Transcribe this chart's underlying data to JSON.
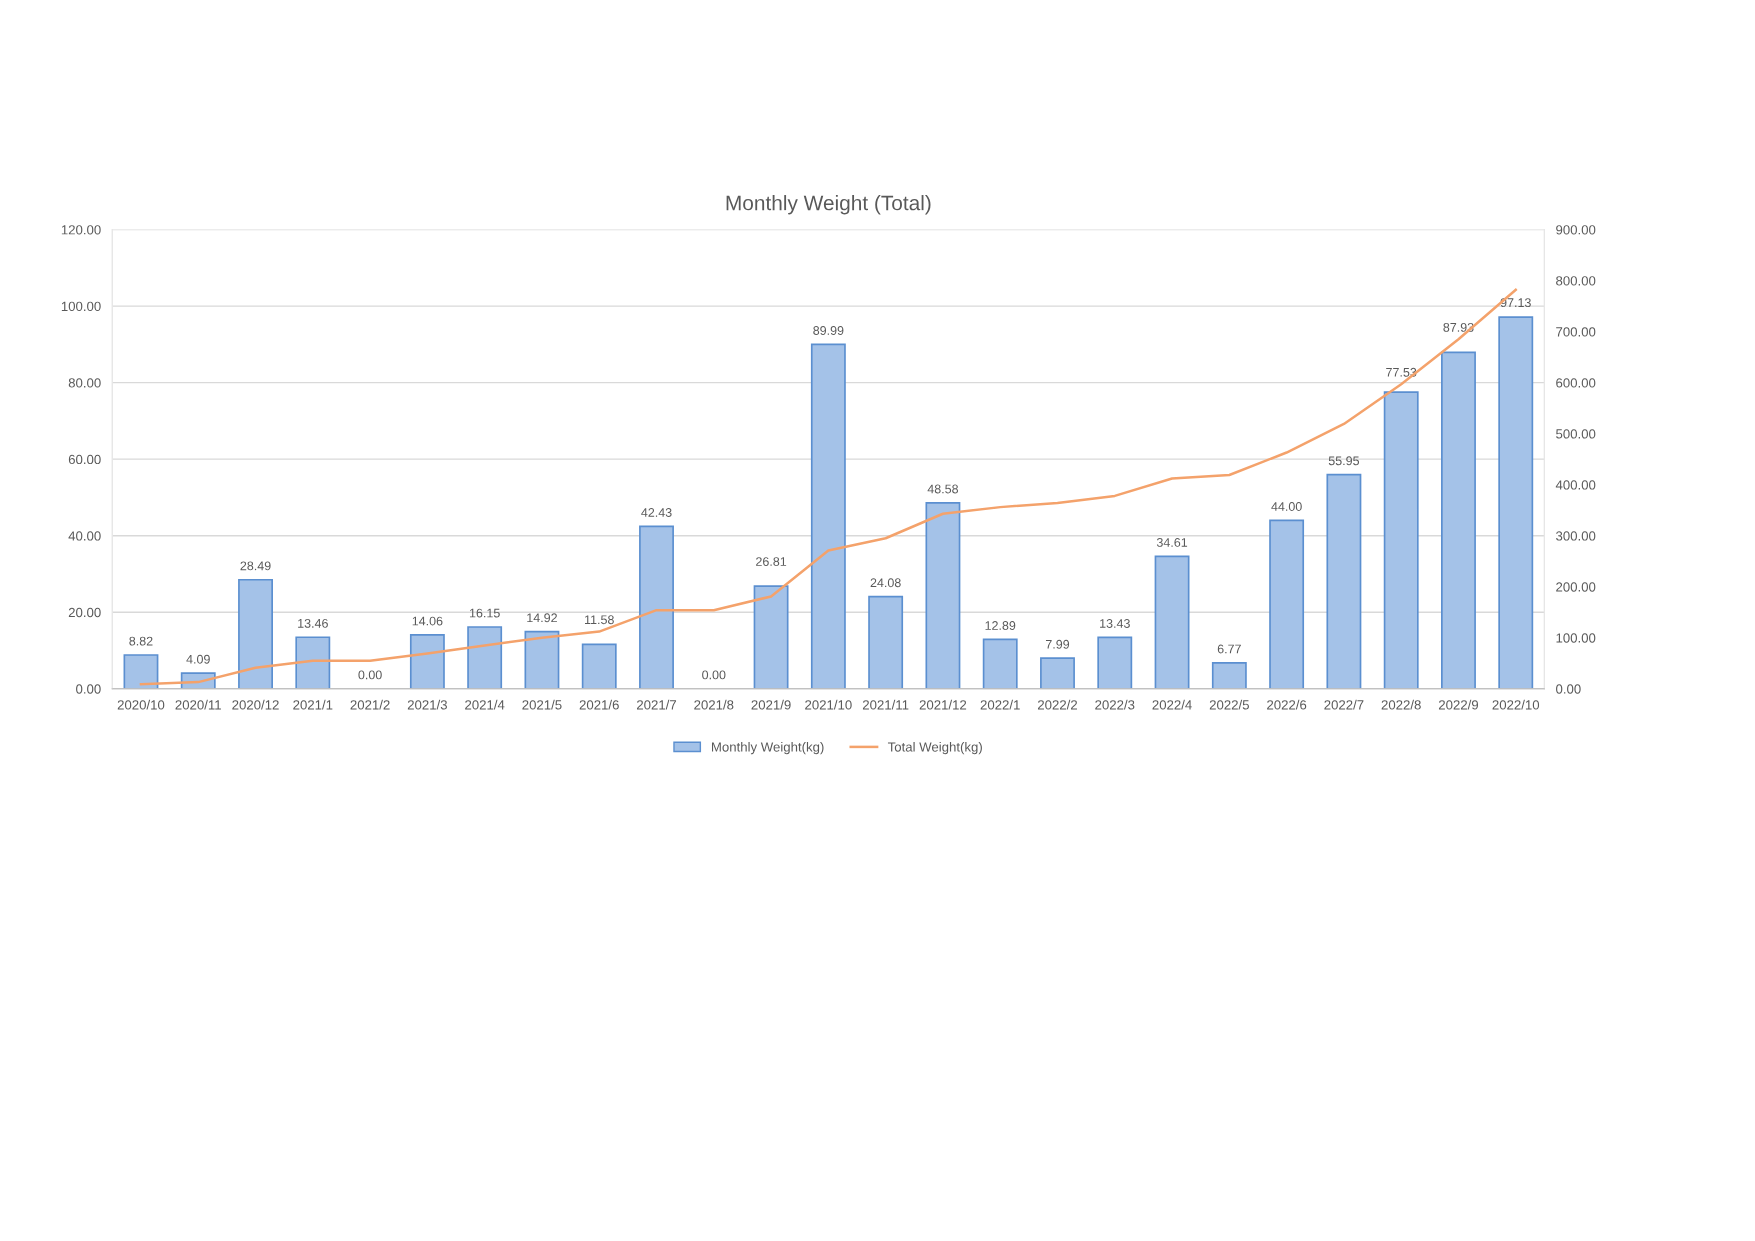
{
  "chart_data": {
    "type": "bar",
    "title": "Monthly Weight (Total)",
    "categories": [
      "2020/10",
      "2020/11",
      "2020/12",
      "2021/1",
      "2021/2",
      "2021/3",
      "2021/4",
      "2021/5",
      "2021/6",
      "2021/7",
      "2021/8",
      "2021/9",
      "2021/10",
      "2021/11",
      "2021/12",
      "2022/1",
      "2022/2",
      "2022/3",
      "2022/4",
      "2022/5",
      "2022/6",
      "2022/7",
      "2022/8",
      "2022/9",
      "2022/10"
    ],
    "series": [
      {
        "name": "Monthly Weight(kg)",
        "color": "#a4c2e8",
        "values": [
          8.82,
          4.09,
          28.49,
          13.46,
          0,
          14.06,
          16.15,
          14.92,
          11.58,
          42.43,
          0,
          26.81,
          89.99,
          24.08,
          48.58,
          12.89,
          7.99,
          13.43,
          34.61,
          6.77,
          44.0,
          55.95,
          77.53,
          87.93,
          97.13
        ],
        "value_labels": [
          "8.82",
          "4.09",
          "28.49",
          "13.46",
          "0.00",
          "14.06",
          "16.15",
          "14.92",
          "11.58",
          "42.43",
          "0.00",
          "26.81",
          "89.99",
          "24.08",
          "48.58",
          "12.89",
          "7.99",
          "13.43",
          "34.61",
          "6.77",
          "44.00",
          "55.95",
          "77.53",
          "87.93",
          "97.13"
        ]
      },
      {
        "name": "Total Weight(kg)",
        "type": "line",
        "axis": "y2",
        "color": "#f4a26b",
        "values": [
          9,
          13,
          41,
          55,
          55,
          69,
          85,
          100,
          112,
          154,
          154,
          181,
          271,
          295,
          343,
          356,
          364,
          378,
          412,
          419,
          463,
          519,
          597,
          685,
          782
        ]
      }
    ],
    "ylim": [
      0,
      120
    ],
    "yticks": [
      {
        "value": 0,
        "label": "0.00"
      },
      {
        "value": 20,
        "label": "20.00"
      },
      {
        "value": 40,
        "label": "40.00"
      },
      {
        "value": 60,
        "label": "60.00"
      },
      {
        "value": 80,
        "label": "80.00"
      },
      {
        "value": 100,
        "label": "100.00"
      },
      {
        "value": 120,
        "label": "120.00"
      }
    ],
    "y2lim": [
      0,
      900
    ],
    "y2ticks": [
      {
        "value": 0,
        "label": "0.00"
      },
      {
        "value": 100,
        "label": "100.00"
      },
      {
        "value": 200,
        "label": "200.00"
      },
      {
        "value": 300,
        "label": "300.00"
      },
      {
        "value": 400,
        "label": "400.00"
      },
      {
        "value": 500,
        "label": "500.00"
      },
      {
        "value": 600,
        "label": "600.00"
      },
      {
        "value": 700,
        "label": "700.00"
      },
      {
        "value": 800,
        "label": "800.00"
      },
      {
        "value": 900,
        "label": "900.00"
      }
    ],
    "grid": "y",
    "legend": "bottom",
    "marker": "none"
  }
}
